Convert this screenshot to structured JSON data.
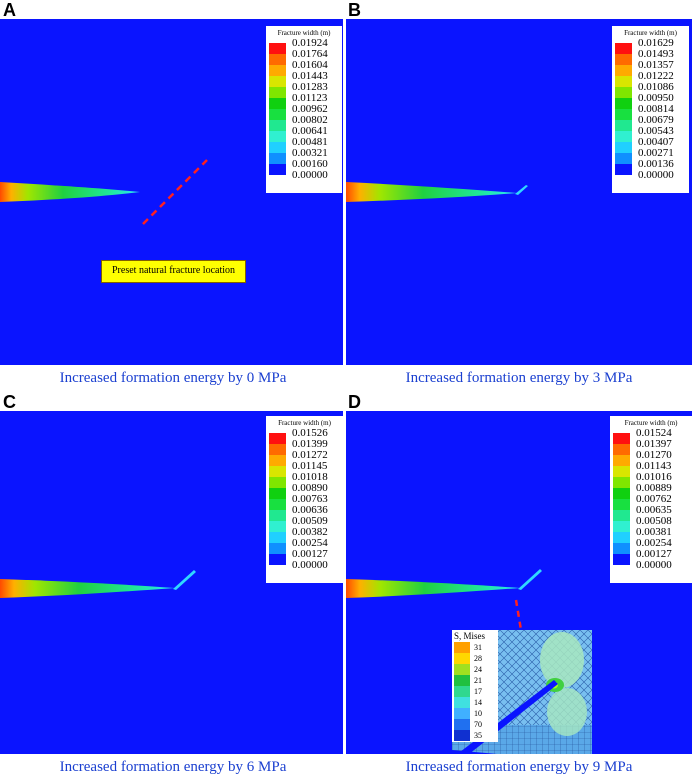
{
  "legend_title": "Fracture width (m)",
  "legend_colors": [
    "#ff1010",
    "#ff6a00",
    "#ffaa00",
    "#d9e600",
    "#80e600",
    "#10d010",
    "#18e040",
    "#20e890",
    "#30f0d0",
    "#20d0ff",
    "#1090ff",
    "#0a14ff"
  ],
  "panels": [
    {
      "letter": "A",
      "caption": "Increased formation energy by 0 MPa",
      "ticks": [
        "0.01924",
        "0.01764",
        "0.01604",
        "0.01443",
        "0.01283",
        "0.01123",
        "0.00962",
        "0.00802",
        "0.00641",
        "0.00481",
        "0.00321",
        "0.00160",
        "0.00000"
      ]
    },
    {
      "letter": "B",
      "caption": "Increased formation energy by 3 MPa",
      "ticks": [
        "0.01629",
        "0.01493",
        "0.01357",
        "0.01222",
        "0.01086",
        "0.00950",
        "0.00814",
        "0.00679",
        "0.00543",
        "0.00407",
        "0.00271",
        "0.00136",
        "0.00000"
      ]
    },
    {
      "letter": "C",
      "caption": "Increased formation energy by 6 MPa",
      "ticks": [
        "0.01526",
        "0.01399",
        "0.01272",
        "0.01145",
        "0.01018",
        "0.00890",
        "0.00763",
        "0.00636",
        "0.00509",
        "0.00382",
        "0.00254",
        "0.00127",
        "0.00000"
      ]
    },
    {
      "letter": "D",
      "caption": "Increased formation energy by 9 MPa",
      "ticks": [
        "0.01524",
        "0.01397",
        "0.01270",
        "0.01143",
        "0.01016",
        "0.00889",
        "0.00762",
        "0.00635",
        "0.00508",
        "0.00381",
        "0.00254",
        "0.00127",
        "0.00000"
      ]
    }
  ],
  "callout": "Preset natural fracture location",
  "inset": {
    "title": "S, Mises",
    "ticks": [
      "31",
      "28",
      "24",
      "21",
      "17",
      "14",
      "10",
      "70",
      "35"
    ]
  }
}
